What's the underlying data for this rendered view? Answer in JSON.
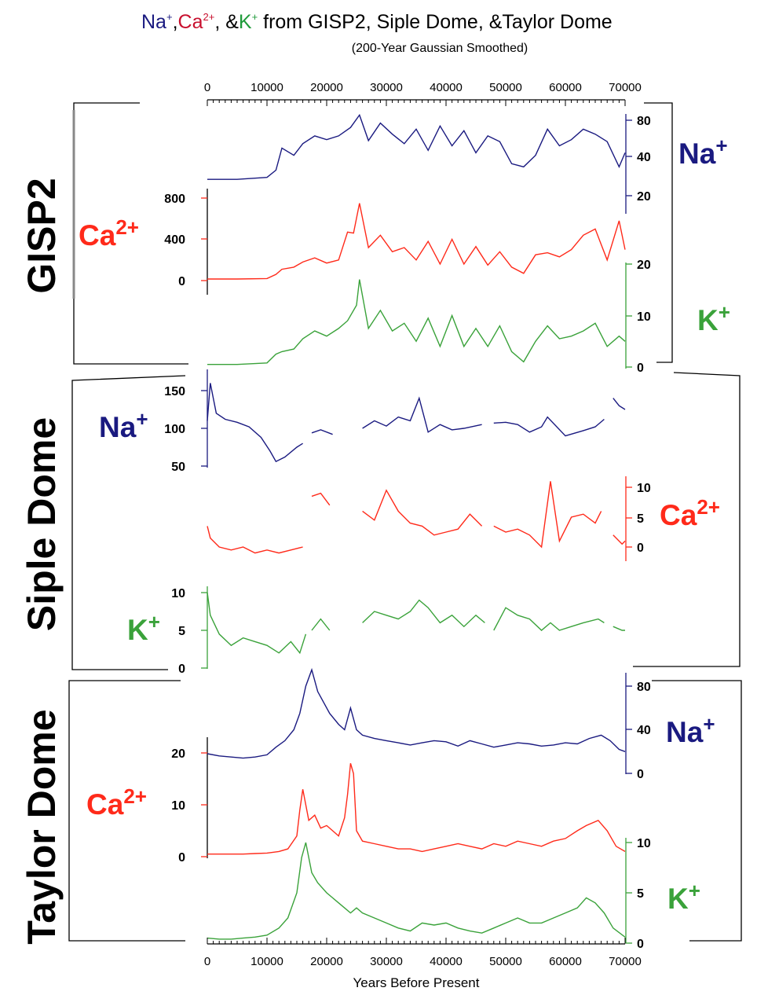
{
  "title": {
    "na": "Na",
    "na_sup": "+",
    "sep1": ",",
    "ca": "Ca",
    "ca_sup": "2+",
    "sep2": ", &",
    "k": "K",
    "k_sup": "+",
    "rest": " from GISP2, Siple Dome, &Taylor Dome",
    "subtitle": "(200-Year Gaussian Smoothed)"
  },
  "colors": {
    "na": "#1a1a80",
    "ca": "#ff2a1a",
    "k": "#3aa23a",
    "frame": "#000000"
  },
  "top_axis_ticks": [
    "0",
    "10000",
    "20000",
    "30000",
    "40000",
    "50000",
    "60000",
    "70000"
  ],
  "bottom_axis_ticks": [
    "0",
    "10000",
    "20000",
    "30000",
    "40000",
    "50000",
    "60000",
    "70000"
  ],
  "xlabel": "Years Before Present",
  "cores": {
    "gisp2": "GISP2",
    "siple": "Siple Dome",
    "taylor": "Taylor Dome"
  },
  "ion_labels": {
    "na": {
      "base": "Na",
      "sup": "+"
    },
    "ca": {
      "base": "Ca",
      "sup": "2+"
    },
    "k": {
      "base": "K",
      "sup": "+"
    }
  },
  "chart_data": [
    {
      "type": "line",
      "core": "GISP2",
      "xlim": [
        0,
        70000
      ],
      "series": [
        {
          "name": "Na+",
          "axis_ticks": [
            "20",
            "40",
            "80"
          ],
          "scale": "log",
          "x": [
            0,
            5000,
            10000,
            11500,
            12500,
            14500,
            16000,
            18000,
            20000,
            22000,
            24000,
            25500,
            27000,
            29000,
            31000,
            33000,
            35000,
            37000,
            39000,
            41000,
            43000,
            45000,
            47000,
            49000,
            51000,
            53000,
            55000,
            57000,
            59000,
            61000,
            63000,
            65000,
            67000,
            69000,
            70000
          ],
          "y": [
            27,
            27,
            28,
            32,
            48,
            42,
            52,
            60,
            56,
            60,
            70,
            88,
            55,
            76,
            62,
            52,
            68,
            46,
            72,
            50,
            66,
            44,
            60,
            54,
            36,
            34,
            42,
            68,
            50,
            56,
            68,
            62,
            54,
            34,
            44
          ]
        },
        {
          "name": "Ca2+",
          "axis_ticks": [
            "0",
            "400",
            "800"
          ],
          "x": [
            0,
            5000,
            10000,
            11500,
            12500,
            14500,
            16000,
            18000,
            20000,
            22000,
            23500,
            24500,
            25500,
            27000,
            29000,
            31000,
            33000,
            35000,
            37000,
            39000,
            41000,
            43000,
            45000,
            47000,
            49000,
            51000,
            53000,
            55000,
            57000,
            59000,
            61000,
            63000,
            65000,
            67000,
            69000,
            70000
          ],
          "y": [
            15,
            15,
            20,
            60,
            110,
            130,
            180,
            220,
            170,
            200,
            470,
            460,
            750,
            320,
            440,
            280,
            320,
            200,
            380,
            160,
            400,
            160,
            330,
            150,
            280,
            130,
            70,
            250,
            270,
            230,
            300,
            440,
            500,
            200,
            580,
            300
          ]
        },
        {
          "name": "K+",
          "axis_ticks": [
            "0",
            "10",
            "20"
          ],
          "x": [
            0,
            5000,
            10000,
            11500,
            12500,
            14500,
            16000,
            18000,
            20000,
            22000,
            23500,
            25000,
            25500,
            27000,
            29000,
            31000,
            33000,
            35000,
            37000,
            39000,
            41000,
            43000,
            45000,
            47000,
            49000,
            51000,
            53000,
            55000,
            57000,
            59000,
            61000,
            63000,
            65000,
            67000,
            69000,
            70000
          ],
          "y": [
            0.5,
            0.5,
            0.8,
            2.5,
            3.0,
            3.5,
            5.5,
            7.0,
            6.0,
            7.5,
            9.0,
            12.0,
            17.0,
            7.5,
            11.0,
            7.0,
            8.5,
            5.0,
            9.5,
            4.0,
            10.0,
            4.0,
            7.5,
            4.0,
            8.0,
            3.0,
            1.0,
            5.0,
            8.0,
            5.5,
            6.0,
            7.0,
            8.5,
            4.0,
            6.0,
            5.0
          ]
        }
      ]
    },
    {
      "type": "line",
      "core": "Siple Dome",
      "xlim": [
        0,
        70000
      ],
      "series": [
        {
          "name": "Na+",
          "axis_ticks": [
            "50",
            "100",
            "150"
          ],
          "x": [
            0,
            500,
            1500,
            3000,
            5000,
            7000,
            9000,
            10500,
            11500,
            13000,
            15000,
            16000,
            null,
            17500,
            19000,
            21000,
            null,
            26000,
            28000,
            30000,
            32000,
            34000,
            35500,
            37000,
            39000,
            41000,
            43000,
            46000,
            null,
            48000,
            50000,
            52000,
            54000,
            56000,
            57000,
            60000,
            63000,
            65000,
            66500,
            null,
            68000,
            69000,
            70000
          ],
          "y": [
            110,
            160,
            120,
            112,
            108,
            102,
            88,
            70,
            56,
            62,
            75,
            80,
            null,
            94,
            98,
            92,
            null,
            100,
            110,
            103,
            115,
            110,
            140,
            95,
            105,
            98,
            100,
            105,
            null,
            107,
            108,
            105,
            95,
            102,
            115,
            90,
            97,
            102,
            112,
            null,
            140,
            130,
            125
          ]
        },
        {
          "name": "Ca2+",
          "axis_ticks": [
            "0",
            "5",
            "10"
          ],
          "x": [
            0,
            500,
            2000,
            4000,
            6000,
            8000,
            10000,
            12000,
            14000,
            16000,
            null,
            17500,
            19000,
            20500,
            null,
            26000,
            28000,
            30000,
            32000,
            34000,
            36000,
            38000,
            40000,
            42000,
            44000,
            46000,
            null,
            48000,
            50000,
            52000,
            54000,
            56000,
            57500,
            59000,
            61000,
            63000,
            65000,
            66000,
            null,
            68000,
            69500,
            70000
          ],
          "y": [
            3.5,
            1.5,
            0,
            -0.5,
            0,
            -1,
            -0.5,
            -1,
            -0.5,
            0,
            null,
            8.5,
            9,
            7,
            null,
            6,
            4.5,
            9.5,
            6,
            4,
            3.5,
            2,
            2.5,
            3,
            5.5,
            3.5,
            null,
            3.5,
            2.5,
            3,
            2,
            0,
            11,
            1,
            5,
            5.5,
            4,
            6,
            null,
            2,
            0.5,
            1
          ]
        },
        {
          "name": "K+",
          "axis_ticks": [
            "0",
            "5",
            "10"
          ],
          "x": [
            0,
            500,
            2000,
            4000,
            6000,
            8000,
            10000,
            12000,
            14000,
            15500,
            16500,
            null,
            17500,
            19000,
            20500,
            null,
            26000,
            28000,
            30000,
            32000,
            34000,
            35500,
            37000,
            39000,
            41000,
            43000,
            45000,
            46500,
            null,
            48000,
            50000,
            52000,
            54000,
            56000,
            57500,
            59000,
            61000,
            63000,
            65500,
            66500,
            null,
            68000,
            69500,
            70000
          ],
          "y": [
            10,
            7,
            4.5,
            3,
            4,
            3.5,
            3,
            2,
            3.5,
            2,
            4.5,
            null,
            5,
            6.5,
            5,
            null,
            6,
            7.5,
            7,
            6.5,
            7.5,
            9,
            8,
            6,
            7,
            5.5,
            7,
            6,
            null,
            5,
            8,
            7,
            6.5,
            5,
            6,
            5,
            5.5,
            6,
            6.5,
            6,
            null,
            5.5,
            5,
            5
          ]
        }
      ]
    },
    {
      "type": "line",
      "core": "Taylor Dome",
      "xlim": [
        0,
        70000
      ],
      "series": [
        {
          "name": "Na+",
          "axis_ticks": [
            "0",
            "40",
            "80"
          ],
          "x": [
            0,
            2000,
            4000,
            6000,
            8000,
            10000,
            11500,
            13000,
            14500,
            15500,
            16500,
            17500,
            18500,
            19500,
            20500,
            22000,
            23000,
            24000,
            25000,
            26000,
            28000,
            30000,
            32000,
            34000,
            36000,
            38000,
            40000,
            42000,
            44000,
            46000,
            48000,
            50000,
            52000,
            54000,
            56000,
            58000,
            60000,
            62000,
            64000,
            66000,
            67500,
            69000,
            70000
          ],
          "y": [
            18,
            16,
            15,
            14,
            15,
            17,
            24,
            30,
            40,
            55,
            80,
            95,
            75,
            65,
            55,
            45,
            40,
            60,
            40,
            35,
            32,
            30,
            28,
            26,
            28,
            30,
            29,
            25,
            30,
            27,
            24,
            26,
            28,
            27,
            25,
            26,
            28,
            27,
            32,
            35,
            30,
            22,
            20
          ]
        },
        {
          "name": "Ca2+",
          "axis_ticks": [
            "0",
            "10",
            "20"
          ],
          "x": [
            0,
            2000,
            4000,
            6000,
            8000,
            10000,
            12000,
            13500,
            15000,
            15500,
            16000,
            17000,
            18000,
            19000,
            20000,
            21000,
            22000,
            23000,
            23500,
            24000,
            24500,
            25000,
            26000,
            28000,
            30000,
            32000,
            34000,
            36000,
            38000,
            40000,
            42000,
            44000,
            46000,
            48000,
            50000,
            52000,
            54000,
            56000,
            58000,
            60000,
            62000,
            63500,
            65500,
            67000,
            68500,
            70000
          ],
          "y": [
            0.5,
            0.5,
            0.5,
            0.5,
            0.6,
            0.7,
            1.0,
            1.5,
            4.0,
            9.0,
            13.0,
            7.0,
            8.0,
            5.5,
            6.0,
            5.0,
            4.0,
            7.5,
            12.0,
            18.0,
            16.0,
            5.0,
            3.0,
            2.5,
            2.0,
            1.5,
            1.5,
            1.0,
            1.5,
            2.0,
            2.5,
            2.0,
            1.5,
            2.5,
            2.0,
            3.0,
            2.5,
            2.0,
            3.0,
            3.5,
            5.0,
            6.0,
            7.0,
            5.0,
            2.0,
            1.0
          ]
        },
        {
          "name": "K+",
          "axis_ticks": [
            "0",
            "5",
            "10"
          ],
          "x": [
            0,
            2000,
            4000,
            6000,
            8000,
            10000,
            12000,
            13500,
            15000,
            15800,
            16500,
            17500,
            18500,
            20000,
            21000,
            22000,
            23000,
            24000,
            25000,
            26000,
            28000,
            30000,
            32000,
            34000,
            36000,
            38000,
            40000,
            42000,
            44000,
            46000,
            48000,
            50000,
            52000,
            54000,
            56000,
            58000,
            60000,
            62000,
            63500,
            65000,
            66500,
            68000,
            70000
          ],
          "y": [
            0.5,
            0.4,
            0.4,
            0.5,
            0.6,
            0.8,
            1.5,
            2.5,
            5.0,
            8.5,
            10.0,
            7.0,
            6.0,
            5.0,
            4.5,
            4.0,
            3.5,
            3.0,
            3.5,
            3.0,
            2.5,
            2.0,
            1.5,
            1.2,
            2.0,
            1.8,
            2.0,
            1.5,
            1.2,
            1.0,
            1.5,
            2.0,
            2.5,
            2.0,
            2.0,
            2.5,
            3.0,
            3.5,
            4.5,
            4.0,
            3.0,
            1.5,
            0.6
          ]
        }
      ]
    }
  ]
}
